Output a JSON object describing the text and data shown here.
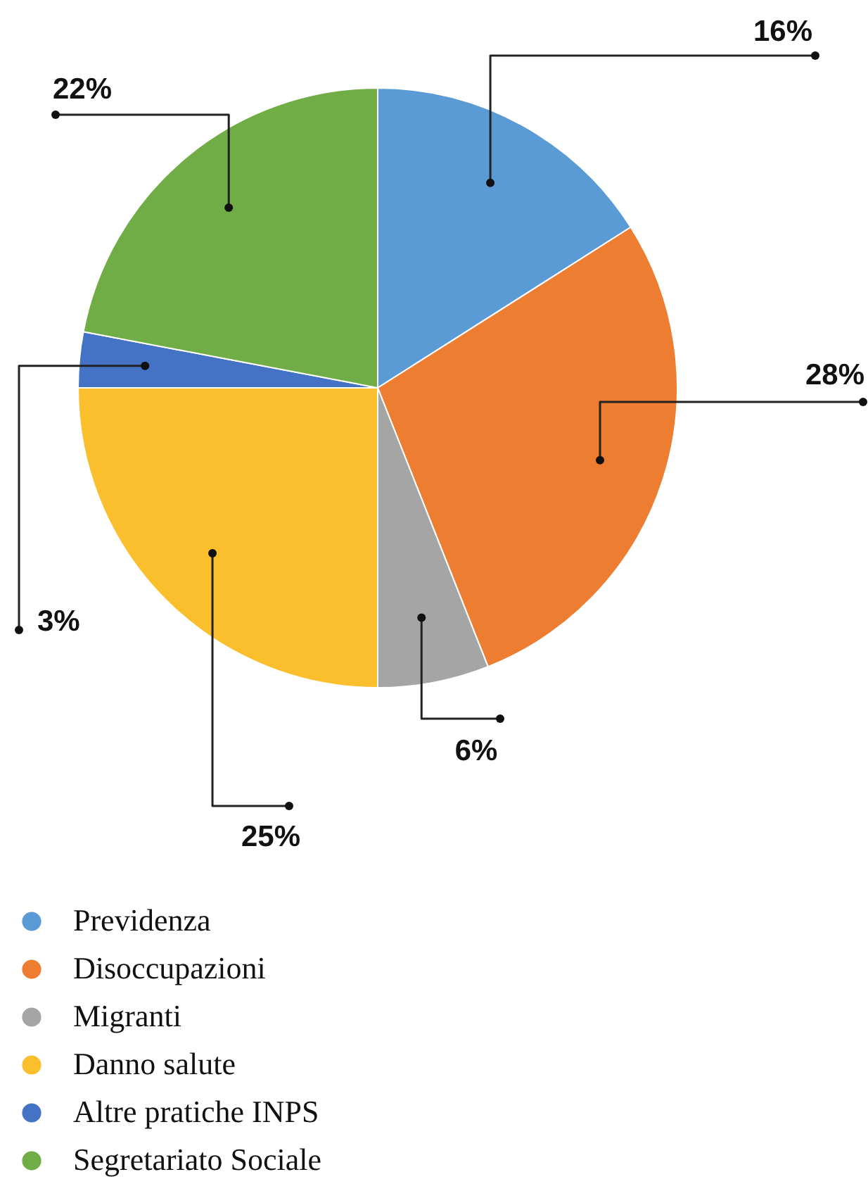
{
  "chart_data": {
    "type": "pie",
    "categories": [
      "Previdenza",
      "Disoccupazioni",
      "Migranti",
      "Danno salute",
      "Altre pratiche INPS",
      "Segretariato Sociale"
    ],
    "values": [
      16,
      28,
      6,
      25,
      3,
      22
    ],
    "colors": [
      "#5b9bd5",
      "#ed7d31",
      "#a5a5a5",
      "#fbbe2c",
      "#4472c4",
      "#70ad47"
    ],
    "value_labels": [
      "16%",
      "28%",
      "6%",
      "25%",
      "3%",
      "22%"
    ],
    "legend": "bottom left"
  }
}
